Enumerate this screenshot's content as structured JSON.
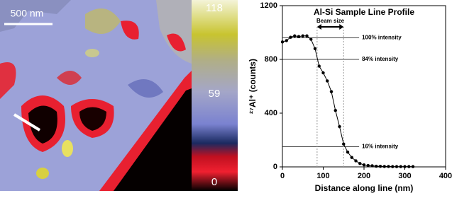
{
  "image": {
    "scale_bar": "500 nm",
    "colorbar_ticks": [
      118,
      59,
      0
    ]
  },
  "chart_data": {
    "type": "line",
    "title": "Al-Si Sample Line Profile",
    "x_label": "Distance along line (nm)",
    "y_label": "²⁷Al⁺ (counts)",
    "x": [
      0,
      10,
      20,
      30,
      40,
      50,
      60,
      70,
      80,
      90,
      100,
      110,
      120,
      130,
      140,
      150,
      160,
      170,
      180,
      190,
      200,
      210,
      220,
      230,
      240,
      250,
      260,
      270,
      280,
      290,
      300,
      310,
      320
    ],
    "series": [
      {
        "color": "#000000",
        "values": [
          930,
          940,
          965,
          975,
          970,
          975,
          975,
          950,
          880,
          750,
          700,
          640,
          560,
          420,
          300,
          170,
          110,
          70,
          45,
          25,
          15,
          10,
          8,
          5,
          4,
          3,
          3,
          2,
          2,
          2,
          2,
          2,
          2
        ]
      }
    ],
    "xlim": [
      0,
      400
    ],
    "xticks": [
      0,
      100,
      200,
      300,
      400
    ],
    "ylim": [
      0,
      1200
    ],
    "yticks": [
      0,
      400,
      800,
      1200
    ],
    "reference_lines": [
      {
        "label": "100% intensity",
        "value": 960
      },
      {
        "label": "84% intensity",
        "value": 800
      },
      {
        "label": "16% intensity",
        "value": 150
      }
    ],
    "beam_size": {
      "label": "Beam size",
      "x": [
        85,
        150
      ]
    }
  }
}
